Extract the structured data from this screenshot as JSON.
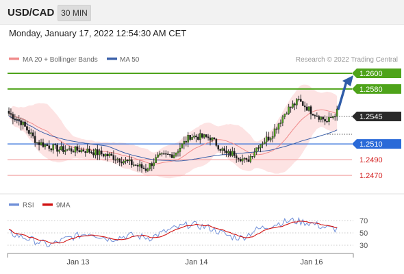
{
  "header": {
    "symbol": "USD/CAD",
    "timeframe": "30 MIN",
    "datetime": "Monday, January 17, 2022 12:54:30 AM CET"
  },
  "legend": {
    "ma20_label": "MA 20 + Bollinger Bands",
    "ma50_label": "MA 50",
    "ma20_color": "#f08a8a",
    "ma50_color": "#3a5fa8",
    "credit": "Research © 2022 Trading Central"
  },
  "rsi_legend": {
    "rsi_label": "RSI",
    "ma_label": "9MA",
    "rsi_color": "#6f8fd8",
    "ma_color": "#d01010"
  },
  "chart_data": {
    "type": "candlestick",
    "ylim": [
      1.24,
      1.264
    ],
    "current_price": "1.2545",
    "levels": [
      {
        "label": "1.2600",
        "value": 1.26,
        "style": "resistance"
      },
      {
        "label": "1.2580",
        "value": 1.258,
        "style": "resistance"
      },
      {
        "label": "1.2510",
        "value": 1.251,
        "style": "pivot"
      },
      {
        "label": "1.2490",
        "value": 1.249,
        "style": "support"
      },
      {
        "label": "1.2470",
        "value": 1.247,
        "style": "support"
      }
    ],
    "x_ticks": [
      "Jan 13",
      "Jan 14",
      "Jan 16"
    ],
    "rsi_ticks": [
      "70",
      "50",
      "30"
    ],
    "rsi_ylim": [
      15,
      85
    ],
    "close_anchors": [
      [
        0,
        1.2549
      ],
      [
        6,
        1.2538
      ],
      [
        14,
        1.2512
      ],
      [
        25,
        1.2503
      ],
      [
        38,
        1.2502
      ],
      [
        50,
        1.2495
      ],
      [
        58,
        1.2488
      ],
      [
        68,
        1.2478
      ],
      [
        74,
        1.2493
      ],
      [
        82,
        1.2497
      ],
      [
        90,
        1.252
      ],
      [
        100,
        1.2518
      ],
      [
        108,
        1.2497
      ],
      [
        112,
        1.2498
      ],
      [
        118,
        1.2487
      ],
      [
        124,
        1.2509
      ],
      [
        130,
        1.252
      ],
      [
        138,
        1.2553
      ],
      [
        144,
        1.2565
      ],
      [
        150,
        1.2552
      ],
      [
        156,
        1.2542
      ],
      [
        158,
        1.2538
      ],
      [
        163,
        1.2551
      ]
    ],
    "rsi_anchors": [
      [
        0,
        50
      ],
      [
        10,
        40
      ],
      [
        20,
        30
      ],
      [
        30,
        42
      ],
      [
        40,
        50
      ],
      [
        50,
        40
      ],
      [
        60,
        46
      ],
      [
        70,
        42
      ],
      [
        80,
        55
      ],
      [
        90,
        64
      ],
      [
        100,
        58
      ],
      [
        110,
        44
      ],
      [
        116,
        42
      ],
      [
        122,
        54
      ],
      [
        132,
        64
      ],
      [
        140,
        70
      ],
      [
        150,
        66
      ],
      [
        158,
        58
      ],
      [
        163,
        56
      ]
    ]
  }
}
